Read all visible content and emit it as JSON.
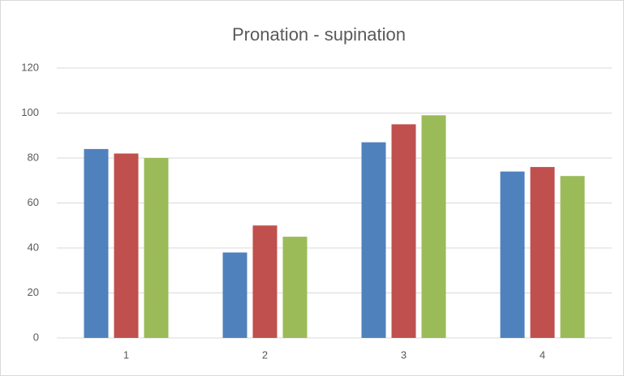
{
  "chart_data": {
    "type": "bar",
    "title": "Pronation - supination",
    "categories": [
      "1",
      "2",
      "3",
      "4"
    ],
    "series": [
      {
        "color": "#4f81bd",
        "values": [
          84,
          38,
          87,
          74
        ]
      },
      {
        "color": "#c0504d",
        "values": [
          82,
          50,
          95,
          76
        ]
      },
      {
        "color": "#9bbb59",
        "values": [
          80,
          45,
          99,
          72
        ]
      }
    ],
    "ylim": [
      0,
      120
    ],
    "yticks": [
      0,
      20,
      40,
      60,
      80,
      100,
      120
    ],
    "grid": true
  }
}
